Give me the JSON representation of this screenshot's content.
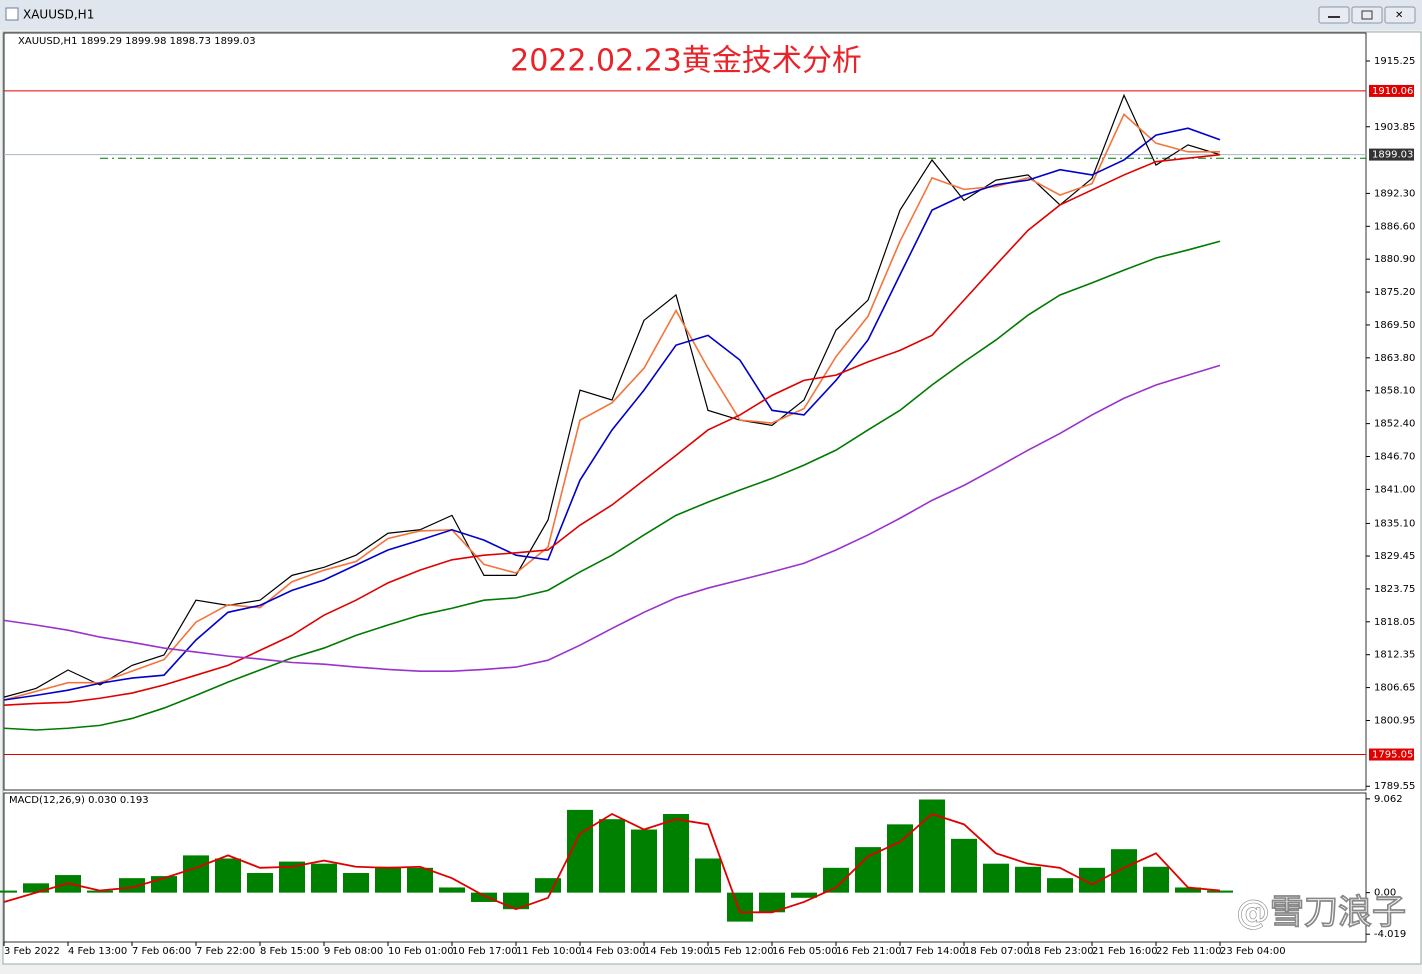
{
  "window": {
    "title": "XAUUSD,H1"
  },
  "chart_data": [
    {
      "type": "line",
      "title": "2022.02.23黄金技术分析",
      "subtitle": "XAUUSD,H1  1899.29 1899.98 1898.73 1899.03",
      "categories": [
        "3 Feb 2022",
        null,
        "4 Feb 13:00",
        null,
        "7 Feb 06:00",
        null,
        "7 Feb 22:00",
        null,
        "8 Feb 15:00",
        null,
        "9 Feb 08:00",
        null,
        "10 Feb 01:00",
        null,
        "10 Feb 17:00",
        null,
        "11 Feb 10:00",
        null,
        "14 Feb 03:00",
        null,
        "14 Feb 19:00",
        null,
        "15 Feb 12:00",
        null,
        "16 Feb 05:00",
        null,
        "16 Feb 21:00",
        null,
        "17 Feb 14:00",
        null,
        "18 Feb 07:00",
        null,
        "18 Feb 23:00",
        null,
        "21 Feb 16:00",
        null,
        "22 Feb 11:00",
        null,
        "23 Feb 04:00"
      ],
      "series": [
        {
          "color": "#000000",
          "values": [
            1805.0,
            1806.5,
            1809.7,
            1807.1,
            1810.5,
            1812.3,
            1821.8,
            1820.9,
            1821.8,
            1826.1,
            1827.5,
            1829.6,
            1833.4,
            1834.0,
            1836.5,
            1826.1,
            1826.1,
            1835.7,
            1858.2,
            1856.5,
            1870.3,
            1874.7,
            1854.7,
            1853.0,
            1852.1,
            1856.5,
            1868.6,
            1873.8,
            1889.4,
            1898.1,
            1891.1,
            1894.6,
            1895.5,
            1890.3,
            1894.9,
            1909.3,
            1897.2,
            1900.7,
            1899.0
          ]
        },
        {
          "color": "#f4743b",
          "values": [
            1804.5,
            1806.0,
            1807.5,
            1807.5,
            1809.5,
            1811.5,
            1818.0,
            1821.0,
            1820.5,
            1825.0,
            1827.0,
            1828.5,
            1832.5,
            1833.8,
            1834.0,
            1828.0,
            1826.5,
            1831.0,
            1853.0,
            1856.0,
            1862.0,
            1872.0,
            1862.0,
            1853.0,
            1852.5,
            1855.0,
            1864.0,
            1871.0,
            1884.0,
            1895.0,
            1893.0,
            1893.5,
            1895.0,
            1892.0,
            1894.0,
            1906.0,
            1901.0,
            1899.5,
            1899.5
          ]
        },
        {
          "color": "#0000cc",
          "values": [
            1804.5,
            1805.3,
            1806.2,
            1807.4,
            1808.3,
            1808.8,
            1814.9,
            1819.7,
            1820.9,
            1823.5,
            1825.3,
            1827.9,
            1830.5,
            1832.2,
            1834.0,
            1832.2,
            1829.6,
            1828.8,
            1842.6,
            1851.3,
            1858.2,
            1866.0,
            1867.7,
            1863.4,
            1854.7,
            1853.9,
            1859.9,
            1866.9,
            1878.2,
            1889.4,
            1892.0,
            1893.8,
            1894.6,
            1896.4,
            1895.5,
            1898.1,
            1902.4,
            1903.6,
            1901.6
          ]
        },
        {
          "color": "#e00000",
          "values": [
            1803.6,
            1803.9,
            1804.1,
            1804.8,
            1805.7,
            1807.1,
            1808.8,
            1810.5,
            1813.1,
            1815.7,
            1819.2,
            1821.8,
            1824.8,
            1827.0,
            1828.8,
            1829.6,
            1830.0,
            1830.5,
            1834.8,
            1838.3,
            1842.6,
            1846.9,
            1851.3,
            1853.9,
            1857.3,
            1859.9,
            1860.8,
            1863.1,
            1865.1,
            1867.7,
            1873.8,
            1879.9,
            1885.9,
            1890.3,
            1892.9,
            1895.5,
            1897.8,
            1898.4,
            1899.0
          ]
        },
        {
          "color": "#007a00",
          "values": [
            1799.6,
            1799.3,
            1799.6,
            1800.1,
            1801.3,
            1803.1,
            1805.3,
            1807.6,
            1809.7,
            1811.8,
            1813.5,
            1815.7,
            1817.5,
            1819.2,
            1820.4,
            1821.8,
            1822.2,
            1823.5,
            1826.7,
            1829.6,
            1833.1,
            1836.5,
            1838.8,
            1840.9,
            1842.9,
            1845.2,
            1847.8,
            1851.3,
            1854.7,
            1859.1,
            1863.1,
            1866.9,
            1871.2,
            1874.7,
            1876.8,
            1879.0,
            1881.1,
            1882.5,
            1884.0
          ]
        },
        {
          "color": "#9933cc",
          "values": [
            1818.3,
            1817.5,
            1816.6,
            1815.4,
            1814.5,
            1813.5,
            1812.8,
            1812.1,
            1811.6,
            1811.0,
            1810.7,
            1810.2,
            1809.8,
            1809.5,
            1809.5,
            1809.8,
            1810.2,
            1811.4,
            1814.0,
            1816.9,
            1819.7,
            1822.2,
            1823.9,
            1825.3,
            1826.7,
            1828.2,
            1830.5,
            1833.1,
            1836.0,
            1839.1,
            1841.7,
            1844.7,
            1847.8,
            1850.7,
            1853.9,
            1856.8,
            1859.1,
            1860.8,
            1862.5
          ]
        }
      ],
      "ylim": [
        1788.9,
        1920.1
      ],
      "yticks": [
        {
          "value": 1915.25,
          "label": "1915.25"
        },
        {
          "value": 1903.85,
          "label": "1903.85"
        },
        {
          "value": 1892.3,
          "label": "1892.30"
        },
        {
          "value": 1886.6,
          "label": "1886.60"
        },
        {
          "value": 1880.9,
          "label": "1880.90"
        },
        {
          "value": 1875.2,
          "label": "1875.20"
        },
        {
          "value": 1869.5,
          "label": "1869.50"
        },
        {
          "value": 1863.8,
          "label": "1863.80"
        },
        {
          "value": 1858.1,
          "label": "1858.10"
        },
        {
          "value": 1852.4,
          "label": "1852.40"
        },
        {
          "value": 1846.7,
          "label": "1846.70"
        },
        {
          "value": 1841.0,
          "label": "1841.00"
        },
        {
          "value": 1835.1,
          "label": "1835.10"
        },
        {
          "value": 1829.45,
          "label": "1829.45"
        },
        {
          "value": 1823.75,
          "label": "1823.75"
        },
        {
          "value": 1818.05,
          "label": "1818.05"
        },
        {
          "value": 1812.35,
          "label": "1812.35"
        },
        {
          "value": 1806.65,
          "label": "1806.65"
        },
        {
          "value": 1800.95,
          "label": "1800.95"
        },
        {
          "value": 1789.55,
          "label": "1789.55"
        }
      ],
      "hlines": [
        {
          "value": 1910.06,
          "color": "#e00000",
          "line": "#e00000"
        },
        {
          "value": 1899.03,
          "color": "#333333",
          "line": "#a8b8c8"
        },
        {
          "value": 1795.05,
          "color": "#e00000",
          "line": "#e00000"
        }
      ],
      "dashed_lines": [
        {
          "value": 1898.4,
          "color": "#007a00"
        }
      ]
    },
    {
      "type": "bar",
      "title": "MACD(12,26,9) 0.030 0.193",
      "series": [
        {
          "type": "bar",
          "color": "#008000",
          "values": [
            0.2,
            0.9,
            1.7,
            0.2,
            1.4,
            1.6,
            3.6,
            3.3,
            1.9,
            3.0,
            2.8,
            1.9,
            2.5,
            2.4,
            0.5,
            -0.9,
            -1.6,
            1.4,
            8.0,
            7.1,
            6.1,
            7.6,
            3.3,
            -2.8,
            -1.9,
            -0.5,
            2.4,
            4.4,
            6.6,
            9.0,
            5.2,
            2.8,
            2.5,
            1.4,
            2.4,
            4.2,
            2.5,
            0.5,
            0.2
          ]
        },
        {
          "type": "line",
          "color": "#e00000",
          "values": [
            -0.9,
            0,
            0.9,
            0.2,
            0.5,
            1.4,
            2.4,
            3.6,
            2.4,
            2.5,
            3.1,
            2.5,
            2.4,
            2.5,
            1.4,
            -0.3,
            -1.6,
            -0.5,
            5.7,
            7.6,
            6.1,
            7.1,
            6.6,
            -1.9,
            -1.9,
            -0.9,
            0.5,
            3.5,
            4.9,
            7.6,
            6.6,
            3.8,
            2.8,
            2.4,
            0.8,
            2.4,
            3.8,
            0.5,
            0.2
          ]
        }
      ],
      "ylim": [
        -4.77,
        9.63
      ],
      "yticks": [
        9.062,
        {
          "value": 0,
          "label": "0.00"
        },
        -4.019
      ]
    }
  ],
  "watermark": "@雪刀浪子"
}
